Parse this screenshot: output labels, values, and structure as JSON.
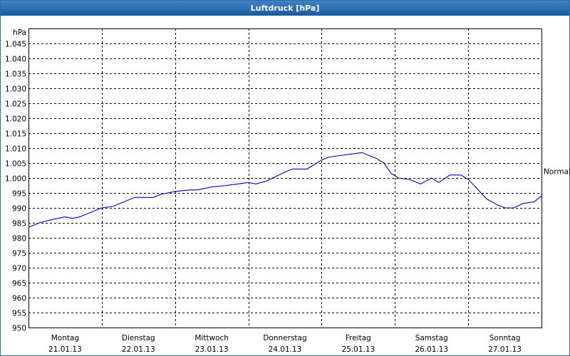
{
  "window": {
    "title": "Luftdruck [hPa]"
  },
  "colors": {
    "line": "#0000c8",
    "grid": "#000000",
    "title_bar": "#2b6cb0"
  },
  "chart_data": {
    "type": "line",
    "title": "Luftdruck [hPa]",
    "ylabel": "hPa",
    "ylim": [
      950,
      1050
    ],
    "yticks": [
      950,
      955,
      960,
      965,
      970,
      975,
      980,
      985,
      990,
      995,
      1000,
      1005,
      1010,
      1015,
      1020,
      1025,
      1030,
      1035,
      1040,
      1045
    ],
    "ytick_labels": [
      "950",
      "955",
      "960",
      "965",
      "970",
      "975",
      "980",
      "985",
      "990",
      "995",
      "1.000",
      "1.005",
      "1.010",
      "1.015",
      "1.020",
      "1.025",
      "1.030",
      "1.035",
      "1.040",
      "1.045"
    ],
    "xlim": [
      0,
      7
    ],
    "x_categories": [
      {
        "day": "Montag",
        "date": "21.01.13"
      },
      {
        "day": "Dienstag",
        "date": "22.01.13"
      },
      {
        "day": "Mittwoch",
        "date": "23.01.13"
      },
      {
        "day": "Donnerstag",
        "date": "24.01.13"
      },
      {
        "day": "Freitag",
        "date": "25.01.13"
      },
      {
        "day": "Samstag",
        "date": "26.01.13"
      },
      {
        "day": "Sonntag",
        "date": "27.01.13"
      }
    ],
    "reference_line": {
      "label": "Normal",
      "value": 1002
    },
    "grid": true,
    "series": [
      {
        "x": [
          0,
          0.15,
          0.3,
          0.5,
          0.6,
          0.7,
          0.85,
          1.0,
          1.15,
          1.3,
          1.45,
          1.5,
          1.7,
          1.8,
          2.0,
          2.2,
          2.3,
          2.5,
          2.7,
          2.85,
          3.0,
          3.1,
          3.25,
          3.5,
          3.6,
          3.8,
          4.0,
          4.1,
          4.25,
          4.4,
          4.55,
          4.65,
          4.75,
          4.85,
          4.95,
          5.05,
          5.2,
          5.35,
          5.5,
          5.6,
          5.75,
          5.9,
          6.0,
          6.1,
          6.25,
          6.4,
          6.5,
          6.62,
          6.75,
          6.9,
          7.0
        ],
        "y": [
          983.5,
          985,
          986,
          987,
          986.5,
          987,
          988.5,
          990,
          990.5,
          992,
          993.5,
          993.5,
          993.5,
          994.5,
          995.5,
          996,
          996,
          997,
          997.5,
          998,
          998.5,
          998,
          999,
          1002,
          1003,
          1003,
          1006,
          1007,
          1007.5,
          1008,
          1008.5,
          1007.5,
          1006.5,
          1005,
          1001.5,
          1000,
          999.5,
          998,
          1000,
          998.5,
          1001,
          1001,
          999.5,
          997,
          993,
          991,
          990,
          990,
          991.5,
          992,
          994
        ]
      }
    ]
  }
}
